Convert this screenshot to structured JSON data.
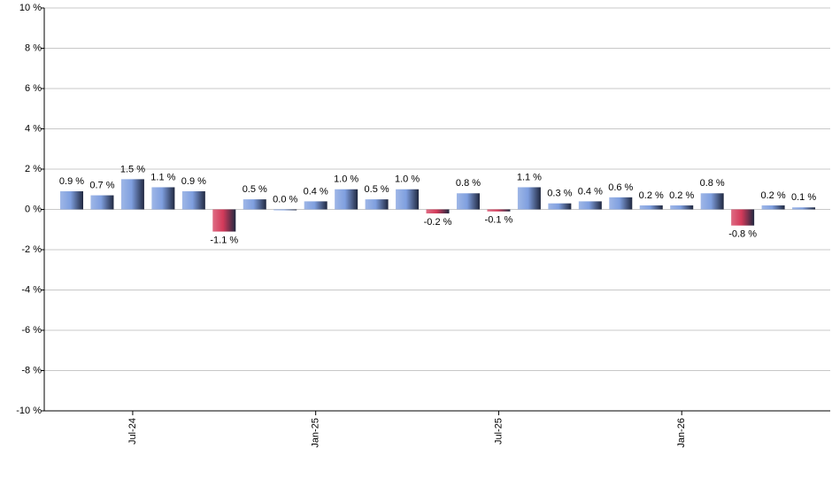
{
  "chart_data": {
    "type": "bar",
    "categories": [
      null,
      null,
      "Jul-24",
      null,
      null,
      null,
      null,
      null,
      "Jan-25",
      null,
      null,
      null,
      null,
      null,
      "Jul-25",
      null,
      null,
      null,
      null,
      null,
      "Jan-26",
      null,
      null,
      null,
      null
    ],
    "values": [
      0.9,
      0.7,
      1.5,
      1.1,
      0.9,
      -1.1,
      0.5,
      0.0,
      0.4,
      1.0,
      0.5,
      1.0,
      -0.2,
      0.8,
      -0.1,
      1.1,
      0.3,
      0.4,
      0.6,
      0.2,
      0.2,
      0.8,
      -0.8,
      0.2,
      0.1
    ],
    "value_labels": [
      "0.9 %",
      "0.7 %",
      "1.5 %",
      "1.1 %",
      "0.9 %",
      "-1.1 %",
      "0.5 %",
      "0.0 %",
      "0.4 %",
      "1.0 %",
      "0.5 %",
      "1.0 %",
      "-0.2 %",
      "0.8 %",
      "-0.1 %",
      "1.1 %",
      "0.3 %",
      "0.4 %",
      "0.6 %",
      "0.2 %",
      "0.2 %",
      "0.8 %",
      "-0.8 %",
      "0.2 %",
      "0.1 %"
    ],
    "color": "#7f9fdf",
    "negative_color": "#d33a5a",
    "ylim": [
      -10,
      10
    ],
    "yticks": [
      {
        "value": -10,
        "label": "-10 %"
      },
      {
        "value": -8,
        "label": "-8 %"
      },
      {
        "value": -6,
        "label": "-6 %"
      },
      {
        "value": -4,
        "label": "-4 %"
      },
      {
        "value": -2,
        "label": "-2 %"
      },
      {
        "value": 0,
        "label": "0 %"
      },
      {
        "value": 2,
        "label": "2 %"
      },
      {
        "value": 4,
        "label": "4 %"
      },
      {
        "value": 6,
        "label": "6 %"
      },
      {
        "value": 8,
        "label": "8 %"
      },
      {
        "value": 10,
        "label": "10 %"
      }
    ],
    "grid": true
  }
}
